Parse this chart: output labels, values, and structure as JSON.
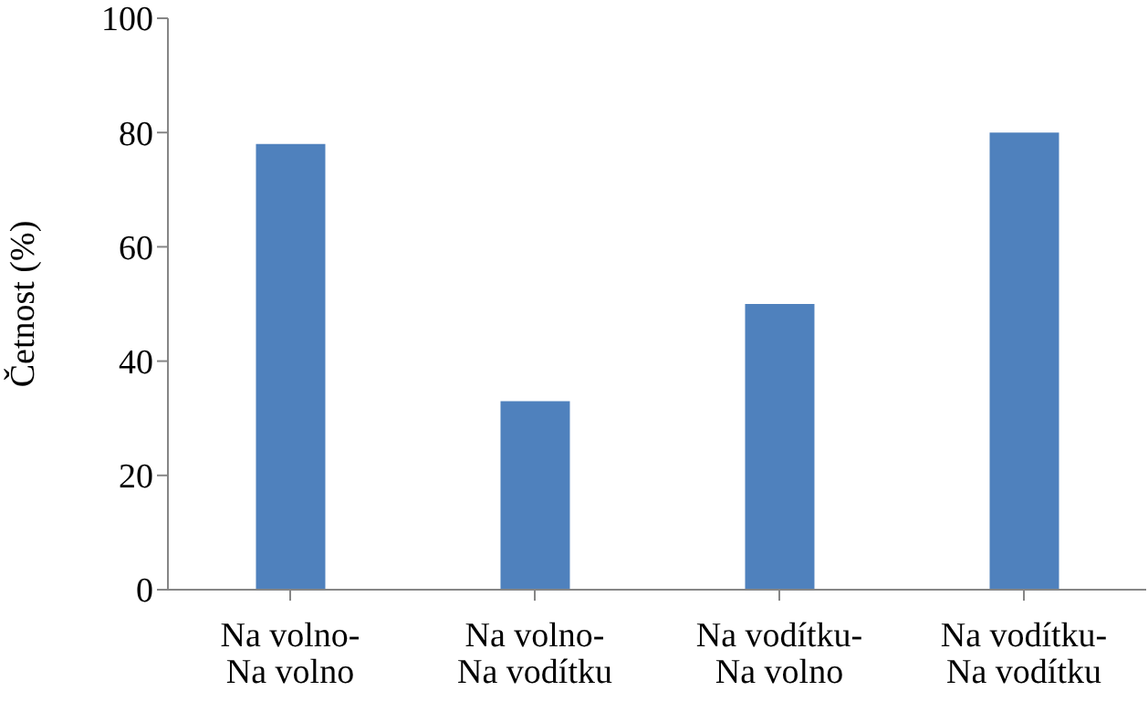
{
  "chart_data": {
    "type": "bar",
    "ylabel": "Četnost (%)",
    "categories": [
      "Na volno-\nNa volno",
      "Na volno-\nNa vodítku",
      "Na vodítku-\nNa volno",
      "Na vodítku-\nNa vodítku"
    ],
    "values": [
      78,
      33,
      50,
      80
    ],
    "color": "#4f81bd",
    "ylim": [
      0,
      100
    ],
    "yticks": [
      0,
      20,
      40,
      60,
      80,
      100
    ],
    "grid": false,
    "legend": false
  }
}
